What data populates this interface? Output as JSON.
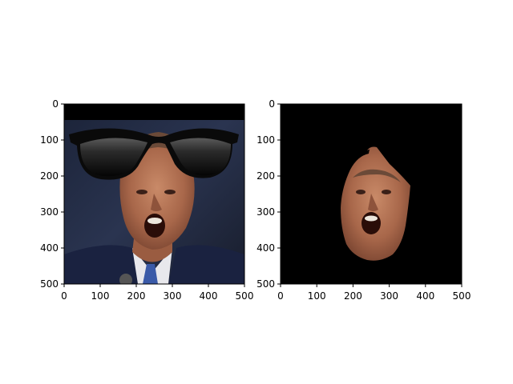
{
  "figure": {
    "background": "#ffffff",
    "axis_color": "#000000"
  },
  "chart_data": [
    {
      "type": "image",
      "xlim": [
        0,
        500
      ],
      "ylim": [
        500,
        0
      ],
      "xticks": [
        0,
        100,
        200,
        300,
        400,
        500
      ],
      "yticks": [
        0,
        100,
        200,
        300,
        400,
        500
      ],
      "xtick_labels": [
        "0",
        "100",
        "200",
        "300",
        "400",
        "500"
      ],
      "ytick_labels": [
        "0",
        "100",
        "200",
        "300",
        "400",
        "500"
      ],
      "content": "photo of a man's face with open mouth wearing black sunglasses overlay",
      "top_band_color": "#000000",
      "overlay": "sunglasses-icon"
    },
    {
      "type": "image",
      "xlim": [
        0,
        500
      ],
      "ylim": [
        500,
        0
      ],
      "xticks": [
        0,
        100,
        200,
        300,
        400,
        500
      ],
      "yticks": [
        0,
        100,
        200,
        300,
        400,
        500
      ],
      "xtick_labels": [
        "0",
        "100",
        "200",
        "300",
        "400",
        "500"
      ],
      "ytick_labels": [
        "0",
        "100",
        "200",
        "300",
        "400",
        "500"
      ],
      "content": "segmented face region on black background",
      "background_color": "#000000"
    }
  ]
}
